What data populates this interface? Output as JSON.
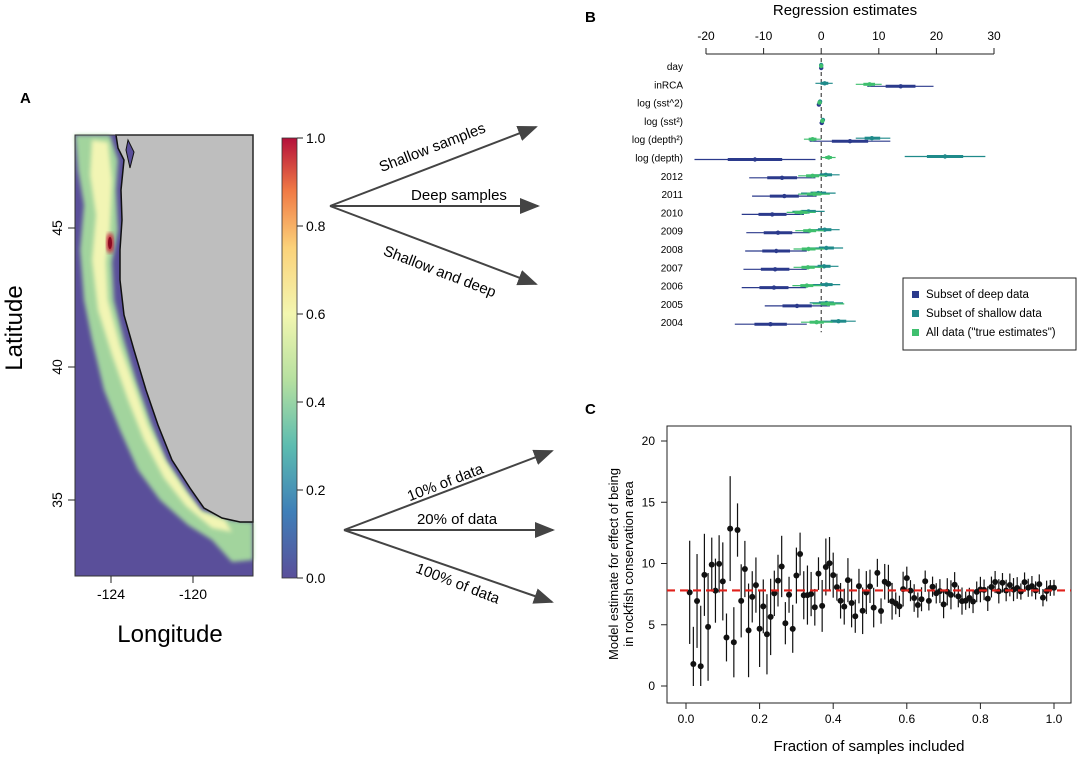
{
  "panel_labels": {
    "a": "A",
    "b": "B",
    "c": "C"
  },
  "map": {
    "ylabel": "Latitude",
    "xlabel": "Longitude",
    "lat_ticks": [
      "45",
      "40",
      "35"
    ],
    "lon_ticks": [
      "-124",
      "-120"
    ],
    "colorbar_ticks": [
      "1.0",
      "0.8",
      "0.6",
      "0.4",
      "0.2",
      "0.0"
    ],
    "colors": {
      "ocean": "#5a4f9a",
      "land": "#bebebe",
      "hot": "#c8102e"
    }
  },
  "arrows_top": [
    "Shallow samples",
    "Deep samples",
    "Shallow and deep"
  ],
  "arrows_bottom": [
    "10% of data",
    "20% of data",
    "100% of data"
  ],
  "chart_data": [
    {
      "type": "forest",
      "title": "Regression estimates",
      "xlim": [
        -20,
        30
      ],
      "xticks": [
        -20,
        -10,
        0,
        10,
        20,
        30
      ],
      "categories": [
        "day",
        "inRCA",
        "log (sst^2)",
        "log (sst²)",
        "log (depth²)",
        "log (depth)",
        "2012",
        "2011",
        "2010",
        "2009",
        "2008",
        "2007",
        "2006",
        "2005",
        "2004"
      ],
      "series": [
        {
          "name": "Subset of deep data",
          "color": "#2b3a8c",
          "values": [
            0,
            13.8,
            -0.4,
            0.1,
            5,
            -11.5,
            -6.8,
            -6.4,
            -8.5,
            -7.5,
            -7.8,
            -8,
            -8.2,
            -4.2,
            -8.8
          ],
          "lower": [
            -0.2,
            8,
            -0.7,
            -0.3,
            -2,
            -22,
            -12.5,
            -12,
            -13.8,
            -13,
            -13.2,
            -13.5,
            -13.8,
            -9.8,
            -15
          ],
          "upper": [
            0.2,
            19.5,
            -0.1,
            0.5,
            12,
            -1,
            -1,
            -0.8,
            -3,
            -2,
            -2.5,
            -2.5,
            -2.6,
            1.5,
            -2.5
          ]
        },
        {
          "name": "Subset of shallow data",
          "color": "#1f8a8a",
          "values": [
            0,
            0.6,
            -0.2,
            0.3,
            8.8,
            21.5,
            0.8,
            -0.5,
            -2.2,
            0.6,
            0.9,
            0.5,
            0.9,
            0.9,
            3
          ],
          "lower": [
            -0.1,
            -1,
            -0.4,
            0,
            6,
            14.5,
            -1.5,
            -3.5,
            -5,
            -2,
            -2,
            -2,
            -1.5,
            -2,
            0
          ],
          "upper": [
            0.1,
            2,
            0,
            0.6,
            12,
            28.5,
            3.2,
            2.5,
            0.6,
            3.2,
            3.8,
            3,
            3.3,
            3.8,
            6
          ]
        },
        {
          "name": "All data (\"true estimates\")",
          "color": "#3fbf6e",
          "values": [
            0,
            8.4,
            -0.3,
            0.2,
            -1.5,
            1.3,
            -1.5,
            -1.2,
            -3.5,
            -2,
            -2.2,
            -2.3,
            -2.5,
            1.2,
            -0.8
          ],
          "lower": [
            -0.1,
            6,
            -0.5,
            -0.2,
            -3,
            0,
            -4,
            -4,
            -6,
            -4.5,
            -4.8,
            -4.8,
            -5,
            -1.5,
            -3.5
          ],
          "upper": [
            0.1,
            10.5,
            -0.1,
            0.5,
            0,
            2.5,
            1,
            1.5,
            -1,
            0.5,
            0.5,
            0.3,
            0,
            4,
            2
          ]
        }
      ]
    },
    {
      "type": "scatter",
      "xlabel": "Fraction of samples included",
      "ylabel": "Model estimate for effect of being in rockfish conservation area",
      "xlim": [
        0,
        1
      ],
      "ylim": [
        0,
        20
      ],
      "xticks": [
        0,
        0.2,
        0.4,
        0.6,
        0.8,
        1
      ],
      "xticklabels": [
        "0.0",
        "0.2",
        "0.4",
        "0.6",
        "0.8",
        "1.0"
      ],
      "yticks": [
        0,
        5,
        10,
        15,
        20
      ],
      "reference_line": 7.8,
      "reference_color": "#e0201b"
    }
  ]
}
